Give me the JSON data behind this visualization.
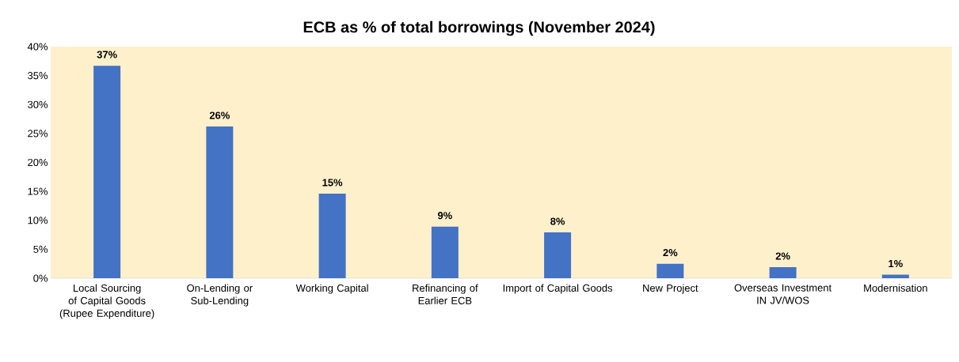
{
  "chart_data": {
    "type": "bar",
    "title": "ECB as % of total borrowings (November 2024)",
    "categories": [
      "Local Sourcing of Capital Goods (Rupee Expenditure)",
      "On-Lending or Sub-Lending",
      "Working Capital",
      "Refinancing of Earlier ECB",
      "Import of Capital Goods",
      "New Project",
      "Overseas Investment IN JV/WOS",
      "Modernisation"
    ],
    "values": [
      36.7,
      26.2,
      14.6,
      8.9,
      7.9,
      2.5,
      1.9,
      0.6
    ],
    "value_labels": [
      "37%",
      "26%",
      "15%",
      "9%",
      "8%",
      "2%",
      "2%",
      "1%"
    ],
    "color": "#4472c4",
    "ylim": [
      0,
      40
    ],
    "yticks": [
      {
        "value": 0,
        "label": "0%"
      },
      {
        "value": 5,
        "label": "5%"
      },
      {
        "value": 10,
        "label": "10%"
      },
      {
        "value": 15,
        "label": "15%"
      },
      {
        "value": 20,
        "label": "20%"
      },
      {
        "value": 25,
        "label": "25%"
      },
      {
        "value": 30,
        "label": "30%"
      },
      {
        "value": 35,
        "label": "35%"
      },
      {
        "value": 40,
        "label": "40%"
      }
    ]
  }
}
